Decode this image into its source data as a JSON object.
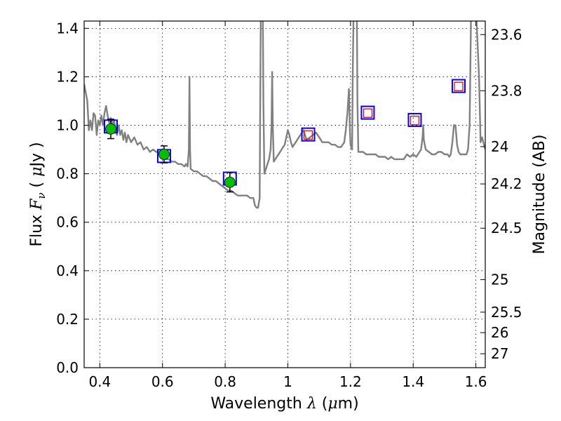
{
  "chart_data": {
    "type": "line",
    "xlabel_prefix": "Wavelength  ",
    "xlabel_symbol": "λ",
    "xlabel_unit_open": " (",
    "xlabel_unit_mu": "μ",
    "xlabel_unit_rest": "m)",
    "ylabel_prefix": "Flux  ",
    "ylabel_symbol": "F",
    "ylabel_sub": "ν",
    "ylabel_unit_open": "  ( ",
    "ylabel_unit_mu": "μ",
    "ylabel_unit_rest": "Jy )",
    "y2label": "Magnitude (AB)",
    "xlim": [
      0.35,
      1.63
    ],
    "ylim": [
      0.0,
      1.43
    ],
    "grid": true,
    "x_ticks": [
      0.4,
      0.6,
      0.8,
      1.0,
      1.2,
      1.4,
      1.6
    ],
    "x_tick_labels": [
      "0.4",
      "0.6",
      "0.8",
      "1",
      "1.2",
      "1.4",
      "1.6"
    ],
    "y_ticks": [
      0.0,
      0.2,
      0.4,
      0.6,
      0.8,
      1.0,
      1.2,
      1.4
    ],
    "y_tick_labels": [
      "0.0",
      "0.2",
      "0.4",
      "0.6",
      "0.8",
      "1.0",
      "1.2",
      "1.4"
    ],
    "mag_ticks": [
      {
        "flux": 1.3741,
        "label": "23.6"
      },
      {
        "flux": 1.1426,
        "label": "23.8"
      },
      {
        "flux": 0.912,
        "label": "24"
      },
      {
        "flux": 0.758,
        "label": "24.2"
      },
      {
        "flux": 0.5754,
        "label": "24.5"
      },
      {
        "flux": 0.3631,
        "label": "25"
      },
      {
        "flux": 0.2291,
        "label": "25.5"
      },
      {
        "flux": 0.1445,
        "label": "26"
      },
      {
        "flux": 0.0575,
        "label": "27"
      }
    ],
    "series": [
      {
        "kind": "line",
        "color": "#808080",
        "points": [
          [
            0.35,
            1.17
          ],
          [
            0.36,
            1.1
          ],
          [
            0.365,
            0.98
          ],
          [
            0.37,
            1.02
          ],
          [
            0.375,
            0.98
          ],
          [
            0.38,
            1.05
          ],
          [
            0.385,
            1.04
          ],
          [
            0.39,
            0.96
          ],
          [
            0.395,
            1.02
          ],
          [
            0.4,
            1.0
          ],
          [
            0.405,
            1.04
          ],
          [
            0.41,
            1.0
          ],
          [
            0.415,
            1.05
          ],
          [
            0.42,
            1.08
          ],
          [
            0.425,
            1.04
          ],
          [
            0.43,
            1.01
          ],
          [
            0.435,
            1.03
          ],
          [
            0.44,
            1.0
          ],
          [
            0.445,
            1.02
          ],
          [
            0.45,
            0.99
          ],
          [
            0.455,
            0.96
          ],
          [
            0.46,
            1.0
          ],
          [
            0.465,
            0.96
          ],
          [
            0.47,
            0.98
          ],
          [
            0.475,
            0.94
          ],
          [
            0.48,
            0.97
          ],
          [
            0.485,
            0.93
          ],
          [
            0.49,
            0.96
          ],
          [
            0.5,
            0.93
          ],
          [
            0.51,
            0.95
          ],
          [
            0.52,
            0.92
          ],
          [
            0.53,
            0.93
          ],
          [
            0.54,
            0.9
          ],
          [
            0.55,
            0.91
          ],
          [
            0.56,
            0.89
          ],
          [
            0.57,
            0.9
          ],
          [
            0.58,
            0.89
          ],
          [
            0.59,
            0.89
          ],
          [
            0.6,
            0.87
          ],
          [
            0.61,
            0.86
          ],
          [
            0.62,
            0.86
          ],
          [
            0.63,
            0.85
          ],
          [
            0.64,
            0.85
          ],
          [
            0.65,
            0.84
          ],
          [
            0.66,
            0.84
          ],
          [
            0.67,
            0.83
          ],
          [
            0.675,
            0.84
          ],
          [
            0.68,
            0.83
          ],
          [
            0.684,
            0.9
          ],
          [
            0.686,
            1.2
          ],
          [
            0.688,
            0.9
          ],
          [
            0.69,
            0.82
          ],
          [
            0.7,
            0.81
          ],
          [
            0.71,
            0.81
          ],
          [
            0.72,
            0.8
          ],
          [
            0.73,
            0.79
          ],
          [
            0.74,
            0.79
          ],
          [
            0.75,
            0.78
          ],
          [
            0.76,
            0.77
          ],
          [
            0.77,
            0.77
          ],
          [
            0.78,
            0.76
          ],
          [
            0.79,
            0.75
          ],
          [
            0.8,
            0.74
          ],
          [
            0.81,
            0.73
          ],
          [
            0.82,
            0.73
          ],
          [
            0.83,
            0.72
          ],
          [
            0.84,
            0.71
          ],
          [
            0.85,
            0.71
          ],
          [
            0.86,
            0.71
          ],
          [
            0.87,
            0.71
          ],
          [
            0.88,
            0.7
          ],
          [
            0.89,
            0.7
          ],
          [
            0.895,
            0.67
          ],
          [
            0.9,
            0.66
          ],
          [
            0.905,
            0.66
          ],
          [
            0.91,
            0.7
          ],
          [
            0.912,
            1.1
          ],
          [
            0.914,
            1.5
          ],
          [
            0.92,
            1.5
          ],
          [
            0.922,
            1.1
          ],
          [
            0.925,
            0.8
          ],
          [
            0.93,
            0.82
          ],
          [
            0.935,
            0.84
          ],
          [
            0.94,
            0.86
          ],
          [
            0.945,
            0.9
          ],
          [
            0.948,
            1.0
          ],
          [
            0.95,
            1.22
          ],
          [
            0.952,
            1.0
          ],
          [
            0.955,
            0.85
          ],
          [
            0.96,
            0.86
          ],
          [
            0.97,
            0.88
          ],
          [
            0.98,
            0.9
          ],
          [
            0.99,
            0.92
          ],
          [
            0.995,
            0.95
          ],
          [
            1.0,
            0.98
          ],
          [
            1.005,
            0.96
          ],
          [
            1.01,
            0.93
          ],
          [
            1.015,
            0.91
          ],
          [
            1.02,
            0.92
          ],
          [
            1.03,
            0.94
          ],
          [
            1.04,
            0.96
          ],
          [
            1.05,
            0.98
          ],
          [
            1.055,
            0.96
          ],
          [
            1.06,
            0.94
          ],
          [
            1.07,
            0.95
          ],
          [
            1.08,
            0.96
          ],
          [
            1.09,
            0.97
          ],
          [
            1.1,
            0.95
          ],
          [
            1.11,
            0.93
          ],
          [
            1.12,
            0.93
          ],
          [
            1.13,
            0.93
          ],
          [
            1.14,
            0.92
          ],
          [
            1.15,
            0.92
          ],
          [
            1.16,
            0.91
          ],
          [
            1.17,
            0.91
          ],
          [
            1.18,
            0.93
          ],
          [
            1.185,
            0.98
          ],
          [
            1.19,
            1.05
          ],
          [
            1.195,
            1.15
          ],
          [
            1.198,
            0.98
          ],
          [
            1.2,
            0.92
          ],
          [
            1.205,
            0.9
          ],
          [
            1.207,
            1.2
          ],
          [
            1.21,
            1.5
          ],
          [
            1.22,
            1.5
          ],
          [
            1.222,
            1.1
          ],
          [
            1.225,
            0.89
          ],
          [
            1.23,
            0.89
          ],
          [
            1.24,
            0.89
          ],
          [
            1.25,
            0.88
          ],
          [
            1.26,
            0.88
          ],
          [
            1.27,
            0.88
          ],
          [
            1.28,
            0.88
          ],
          [
            1.29,
            0.87
          ],
          [
            1.3,
            0.87
          ],
          [
            1.31,
            0.87
          ],
          [
            1.32,
            0.86
          ],
          [
            1.33,
            0.87
          ],
          [
            1.34,
            0.86
          ],
          [
            1.35,
            0.86
          ],
          [
            1.36,
            0.86
          ],
          [
            1.37,
            0.86
          ],
          [
            1.38,
            0.88
          ],
          [
            1.39,
            0.87
          ],
          [
            1.4,
            0.88
          ],
          [
            1.41,
            0.87
          ],
          [
            1.415,
            0.88
          ],
          [
            1.42,
            0.89
          ],
          [
            1.425,
            0.9
          ],
          [
            1.43,
            0.95
          ],
          [
            1.432,
            1.0
          ],
          [
            1.434,
            0.94
          ],
          [
            1.44,
            0.9
          ],
          [
            1.45,
            0.89
          ],
          [
            1.46,
            0.88
          ],
          [
            1.47,
            0.88
          ],
          [
            1.48,
            0.89
          ],
          [
            1.49,
            0.89
          ],
          [
            1.5,
            0.88
          ],
          [
            1.51,
            0.88
          ],
          [
            1.515,
            0.87
          ],
          [
            1.52,
            0.88
          ],
          [
            1.525,
            0.93
          ],
          [
            1.53,
            1.0
          ],
          [
            1.535,
            1.0
          ],
          [
            1.54,
            0.92
          ],
          [
            1.545,
            0.89
          ],
          [
            1.55,
            0.88
          ],
          [
            1.56,
            0.88
          ],
          [
            1.57,
            0.88
          ],
          [
            1.575,
            0.9
          ],
          [
            1.58,
            1.0
          ],
          [
            1.585,
            1.5
          ],
          [
            1.6,
            1.5
          ],
          [
            1.61,
            1.2
          ],
          [
            1.615,
            0.93
          ],
          [
            1.62,
            0.95
          ],
          [
            1.63,
            0.9
          ]
        ]
      },
      {
        "kind": "markers",
        "marker": "open-square",
        "edge_color": "#0000ff",
        "points": [
          [
            0.435,
            0.995
          ],
          [
            0.605,
            0.873
          ],
          [
            0.815,
            0.78
          ],
          [
            1.065,
            0.962
          ],
          [
            1.255,
            1.052
          ],
          [
            1.405,
            1.022
          ],
          [
            1.545,
            1.162
          ]
        ]
      },
      {
        "kind": "markers",
        "marker": "open-square-small",
        "edge_color": "#ff0000",
        "points": [
          [
            1.065,
            0.96
          ],
          [
            1.255,
            1.05
          ],
          [
            1.405,
            1.02
          ],
          [
            1.545,
            1.16
          ]
        ]
      },
      {
        "kind": "markers",
        "marker": "filled-circle",
        "color": "#00c000",
        "points": [
          [
            0.435,
            0.985
          ],
          [
            0.605,
            0.88
          ],
          [
            0.815,
            0.765
          ]
        ],
        "errors": [
          0.04,
          0.035,
          0.04
        ]
      }
    ]
  }
}
